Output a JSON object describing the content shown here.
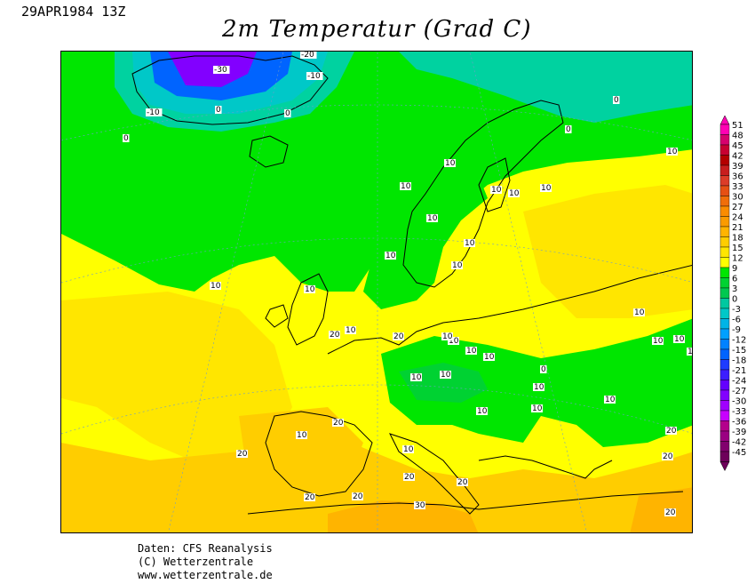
{
  "header": {
    "date": "29APR1984 13Z",
    "title": "2m Temperatur (Grad C)"
  },
  "legend": {
    "values": [
      "51",
      "48",
      "45",
      "42",
      "39",
      "36",
      "33",
      "30",
      "27",
      "24",
      "21",
      "18",
      "15",
      "12",
      "9",
      "6",
      "3",
      "0",
      "-3",
      "-6",
      "-9",
      "-12",
      "-15",
      "-18",
      "-21",
      "-24",
      "-27",
      "-30",
      "-33",
      "-36",
      "-39",
      "-42",
      "-45"
    ],
    "colors": [
      "#ff00b4",
      "#d7006e",
      "#c80032",
      "#b40000",
      "#c81e1e",
      "#dc3c28",
      "#e65014",
      "#f06e0a",
      "#fa8c00",
      "#fa9b00",
      "#ffb400",
      "#ffcd00",
      "#ffe600",
      "#ffff00",
      "#00e600",
      "#00d232",
      "#00c850",
      "#00c8a0",
      "#00c8c8",
      "#00b4e6",
      "#00a0ff",
      "#0082ff",
      "#0064ff",
      "#1e3cff",
      "#3c1eff",
      "#6400ff",
      "#8200ff",
      "#a000ff",
      "#c800ff",
      "#b4008c",
      "#9b0082",
      "#82006e",
      "#6e005a"
    ]
  },
  "map_labels": [
    "-20",
    "-10",
    "-30",
    "-10",
    "0",
    "0",
    "0",
    "0",
    "0",
    "10",
    "10",
    "10",
    "10",
    "10",
    "10",
    "10",
    "10",
    "10",
    "10",
    "10",
    "10",
    "10",
    "20",
    "20",
    "10",
    "10",
    "10",
    "10",
    "10",
    "10",
    "10",
    "10",
    "10",
    "10",
    "10",
    "0",
    "10",
    "10",
    "10",
    "10",
    "10",
    "20",
    "20",
    "20",
    "20",
    "20",
    "20",
    "30",
    "20",
    "20",
    "20"
  ],
  "credits": {
    "line1": "Daten: CFS Reanalysis",
    "line2": "(C) Wetterzentrale",
    "line3": "www.wetterzentrale.de"
  },
  "colors": {
    "green": "#00e600",
    "yellow": "#ffff00",
    "gold": "#ffe600",
    "orange": "#ffcd00",
    "dark_orange": "#ffb400",
    "teal": "#00d2a0",
    "cyan": "#00c8c8",
    "blue": "#0064ff",
    "purple": "#8200ff"
  }
}
